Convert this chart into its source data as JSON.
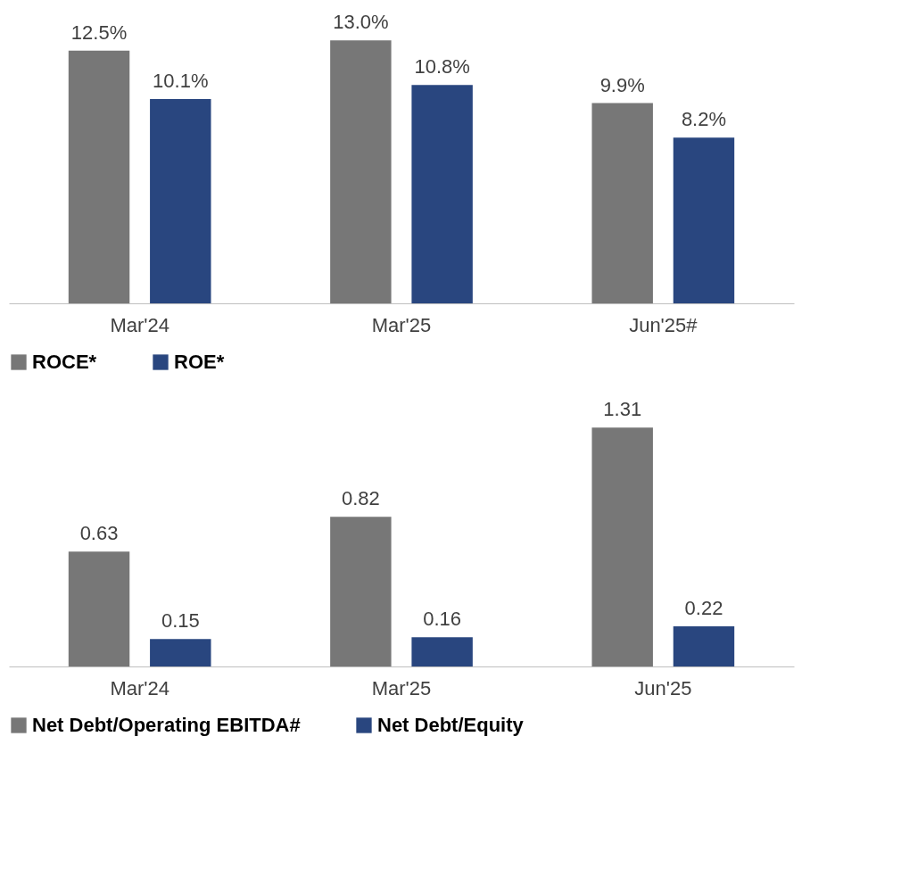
{
  "chart_data": [
    {
      "type": "bar",
      "categories": [
        "Mar'24",
        "Mar'25",
        "Jun'25#"
      ],
      "series": [
        {
          "name": "ROCE*",
          "color": "#777777",
          "values": [
            12.5,
            13.0,
            9.9
          ],
          "value_labels": [
            "12.5%",
            "13.0%",
            "9.9%"
          ]
        },
        {
          "name": "ROE*",
          "color": "#29467f",
          "values": [
            10.1,
            10.8,
            8.2
          ],
          "value_labels": [
            "10.1%",
            "10.8%",
            "8.2%"
          ]
        }
      ],
      "tick_labels": "x",
      "legend": "bottom",
      "grid": false
    },
    {
      "type": "bar",
      "categories": [
        "Mar'24",
        "Mar'25",
        "Jun'25"
      ],
      "series": [
        {
          "name": "Net Debt/Operating EBITDA#",
          "color": "#777777",
          "values": [
            0.63,
            0.82,
            1.31
          ]
        },
        {
          "name": "Net Debt/Equity",
          "color": "#29467f",
          "values": [
            0.15,
            0.16,
            0.22
          ]
        }
      ],
      "data_labels": true,
      "tick_labels": "x",
      "legend": "bottom",
      "grid": false
    }
  ]
}
